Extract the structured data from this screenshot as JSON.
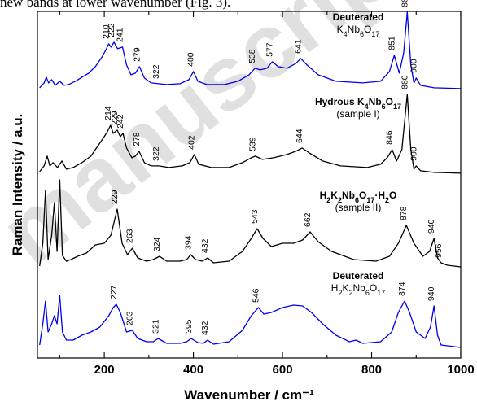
{
  "caption_fragment": "new bands at lower wavenumber (Fig. 3).",
  "watermark_text": "manuscript",
  "chart_data": {
    "type": "line",
    "xlabel": "Wavenumber / cm⁻¹",
    "ylabel": "Raman Intensity / a.u.",
    "xlim": [
      50,
      1000
    ],
    "xticks": [
      "200",
      "400",
      "600",
      "800",
      "1000"
    ],
    "grid": false,
    "series": [
      {
        "name": "Deuterated K4Nb6O17",
        "label_lines": [
          "Deuterated",
          "K4Nb6O17"
        ],
        "color": "#0000ee",
        "baseline_offset": 3.15,
        "peaks": [
          "210",
          "222",
          "241",
          "279",
          "322",
          "400",
          "538",
          "577",
          "641",
          "851",
          "880",
          "900"
        ],
        "points": [
          [
            55,
            0.02
          ],
          [
            65,
            0.08
          ],
          [
            70,
            0.15
          ],
          [
            75,
            0.08
          ],
          [
            82,
            0.12
          ],
          [
            90,
            0.05
          ],
          [
            100,
            0.1
          ],
          [
            110,
            0.05
          ],
          [
            120,
            0.06
          ],
          [
            135,
            0.1
          ],
          [
            150,
            0.15
          ],
          [
            165,
            0.2
          ],
          [
            180,
            0.28
          ],
          [
            195,
            0.4
          ],
          [
            205,
            0.5
          ],
          [
            210,
            0.56
          ],
          [
            215,
            0.52
          ],
          [
            222,
            0.58
          ],
          [
            230,
            0.5
          ],
          [
            241,
            0.52
          ],
          [
            250,
            0.3
          ],
          [
            260,
            0.18
          ],
          [
            270,
            0.2
          ],
          [
            279,
            0.28
          ],
          [
            290,
            0.14
          ],
          [
            305,
            0.08
          ],
          [
            322,
            0.07
          ],
          [
            340,
            0.06
          ],
          [
            370,
            0.07
          ],
          [
            390,
            0.12
          ],
          [
            400,
            0.22
          ],
          [
            410,
            0.1
          ],
          [
            430,
            0.06
          ],
          [
            470,
            0.06
          ],
          [
            500,
            0.1
          ],
          [
            525,
            0.18
          ],
          [
            538,
            0.26
          ],
          [
            550,
            0.24
          ],
          [
            565,
            0.26
          ],
          [
            577,
            0.34
          ],
          [
            590,
            0.28
          ],
          [
            610,
            0.26
          ],
          [
            630,
            0.32
          ],
          [
            641,
            0.38
          ],
          [
            655,
            0.3
          ],
          [
            680,
            0.18
          ],
          [
            720,
            0.1
          ],
          [
            780,
            0.08
          ],
          [
            820,
            0.1
          ],
          [
            840,
            0.22
          ],
          [
            851,
            0.42
          ],
          [
            862,
            0.2
          ],
          [
            872,
            0.45
          ],
          [
            880,
            0.95
          ],
          [
            888,
            0.3
          ],
          [
            895,
            0.08
          ],
          [
            900,
            0.14
          ],
          [
            910,
            0.05
          ],
          [
            940,
            0.02
          ],
          [
            1000,
            0.01
          ]
        ]
      },
      {
        "name": "Hydrous K4Nb6O17 (sample I)",
        "label_lines": [
          "Hydrous K4Nb6O17",
          "(sample I)"
        ],
        "color": "#000000",
        "baseline_offset": 2.12,
        "peaks": [
          "214",
          "229",
          "242",
          "278",
          "322",
          "402",
          "539",
          "644",
          "846",
          "880",
          "900"
        ],
        "points": [
          [
            55,
            0.03
          ],
          [
            65,
            0.1
          ],
          [
            72,
            0.22
          ],
          [
            78,
            0.1
          ],
          [
            85,
            0.14
          ],
          [
            95,
            0.08
          ],
          [
            105,
            0.16
          ],
          [
            115,
            0.06
          ],
          [
            130,
            0.08
          ],
          [
            150,
            0.14
          ],
          [
            170,
            0.22
          ],
          [
            185,
            0.34
          ],
          [
            200,
            0.46
          ],
          [
            207,
            0.52
          ],
          [
            214,
            0.6
          ],
          [
            220,
            0.5
          ],
          [
            229,
            0.54
          ],
          [
            236,
            0.46
          ],
          [
            242,
            0.5
          ],
          [
            250,
            0.32
          ],
          [
            262,
            0.2
          ],
          [
            270,
            0.22
          ],
          [
            278,
            0.28
          ],
          [
            290,
            0.14
          ],
          [
            305,
            0.1
          ],
          [
            322,
            0.1
          ],
          [
            345,
            0.08
          ],
          [
            375,
            0.1
          ],
          [
            392,
            0.14
          ],
          [
            402,
            0.24
          ],
          [
            412,
            0.12
          ],
          [
            440,
            0.08
          ],
          [
            480,
            0.08
          ],
          [
            510,
            0.14
          ],
          [
            530,
            0.2
          ],
          [
            539,
            0.22
          ],
          [
            555,
            0.18
          ],
          [
            580,
            0.2
          ],
          [
            610,
            0.24
          ],
          [
            630,
            0.28
          ],
          [
            644,
            0.32
          ],
          [
            660,
            0.26
          ],
          [
            690,
            0.16
          ],
          [
            730,
            0.1
          ],
          [
            790,
            0.08
          ],
          [
            820,
            0.12
          ],
          [
            835,
            0.2
          ],
          [
            846,
            0.3
          ],
          [
            856,
            0.16
          ],
          [
            868,
            0.3
          ],
          [
            880,
            0.98
          ],
          [
            888,
            0.3
          ],
          [
            895,
            0.06
          ],
          [
            900,
            0.1
          ],
          [
            910,
            0.04
          ],
          [
            940,
            0.02
          ],
          [
            1000,
            0.01
          ]
        ]
      },
      {
        "name": "H2K2Nb6O17·H2O (sample II)",
        "label_lines": [
          "H2K2Nb6O17·H2O",
          "(sample II)"
        ],
        "color": "#000000",
        "baseline_offset": 0.98,
        "peaks": [
          "229",
          "263",
          "324",
          "394",
          "432",
          "543",
          "662",
          "878",
          "940",
          "956"
        ],
        "points": [
          [
            55,
            0.02
          ],
          [
            62,
            0.3
          ],
          [
            68,
            0.95
          ],
          [
            74,
            0.1
          ],
          [
            82,
            0.4
          ],
          [
            88,
            0.8
          ],
          [
            94,
            0.2
          ],
          [
            100,
            1.08
          ],
          [
            106,
            0.15
          ],
          [
            115,
            0.08
          ],
          [
            125,
            0.1
          ],
          [
            140,
            0.14
          ],
          [
            160,
            0.18
          ],
          [
            180,
            0.28
          ],
          [
            200,
            0.3
          ],
          [
            215,
            0.4
          ],
          [
            229,
            0.72
          ],
          [
            240,
            0.3
          ],
          [
            252,
            0.16
          ],
          [
            263,
            0.24
          ],
          [
            275,
            0.12
          ],
          [
            295,
            0.08
          ],
          [
            310,
            0.1
          ],
          [
            324,
            0.14
          ],
          [
            340,
            0.08
          ],
          [
            370,
            0.08
          ],
          [
            385,
            0.1
          ],
          [
            394,
            0.16
          ],
          [
            405,
            0.1
          ],
          [
            420,
            0.08
          ],
          [
            432,
            0.12
          ],
          [
            445,
            0.06
          ],
          [
            480,
            0.08
          ],
          [
            510,
            0.2
          ],
          [
            530,
            0.36
          ],
          [
            543,
            0.48
          ],
          [
            556,
            0.36
          ],
          [
            575,
            0.26
          ],
          [
            600,
            0.3
          ],
          [
            625,
            0.3
          ],
          [
            645,
            0.34
          ],
          [
            662,
            0.44
          ],
          [
            680,
            0.32
          ],
          [
            710,
            0.2
          ],
          [
            760,
            0.1
          ],
          [
            810,
            0.08
          ],
          [
            840,
            0.14
          ],
          [
            860,
            0.3
          ],
          [
            878,
            0.52
          ],
          [
            895,
            0.3
          ],
          [
            915,
            0.14
          ],
          [
            930,
            0.2
          ],
          [
            940,
            0.36
          ],
          [
            948,
            0.12
          ],
          [
            956,
            0.06
          ],
          [
            970,
            0.03
          ],
          [
            1000,
            0.01
          ]
        ]
      },
      {
        "name": "Deuterated H2K2Nb6O17",
        "label_lines": [
          "Deuterated",
          "H2K2Nb6O17"
        ],
        "color": "#0000ee",
        "baseline_offset": 0.0,
        "peaks": [
          "227",
          "263",
          "321",
          "395",
          "432",
          "546",
          "874",
          "940"
        ],
        "points": [
          [
            55,
            0.04
          ],
          [
            62,
            0.3
          ],
          [
            68,
            0.58
          ],
          [
            74,
            0.2
          ],
          [
            82,
            0.3
          ],
          [
            88,
            0.4
          ],
          [
            94,
            0.3
          ],
          [
            100,
            0.65
          ],
          [
            106,
            0.2
          ],
          [
            115,
            0.1
          ],
          [
            130,
            0.1
          ],
          [
            150,
            0.16
          ],
          [
            170,
            0.2
          ],
          [
            190,
            0.26
          ],
          [
            210,
            0.4
          ],
          [
            220,
            0.5
          ],
          [
            227,
            0.54
          ],
          [
            236,
            0.44
          ],
          [
            250,
            0.2
          ],
          [
            263,
            0.22
          ],
          [
            275,
            0.12
          ],
          [
            295,
            0.08
          ],
          [
            310,
            0.08
          ],
          [
            321,
            0.12
          ],
          [
            340,
            0.06
          ],
          [
            370,
            0.06
          ],
          [
            385,
            0.08
          ],
          [
            395,
            0.12
          ],
          [
            410,
            0.07
          ],
          [
            422,
            0.06
          ],
          [
            432,
            0.1
          ],
          [
            445,
            0.05
          ],
          [
            480,
            0.08
          ],
          [
            510,
            0.22
          ],
          [
            530,
            0.4
          ],
          [
            546,
            0.5
          ],
          [
            558,
            0.42
          ],
          [
            575,
            0.44
          ],
          [
            600,
            0.5
          ],
          [
            625,
            0.53
          ],
          [
            645,
            0.52
          ],
          [
            665,
            0.44
          ],
          [
            690,
            0.3
          ],
          [
            720,
            0.16
          ],
          [
            750,
            0.08
          ],
          [
            765,
            0.1
          ],
          [
            780,
            0.06
          ],
          [
            820,
            0.08
          ],
          [
            845,
            0.2
          ],
          [
            860,
            0.44
          ],
          [
            874,
            0.58
          ],
          [
            885,
            0.44
          ],
          [
            900,
            0.2
          ],
          [
            920,
            0.12
          ],
          [
            932,
            0.26
          ],
          [
            940,
            0.52
          ],
          [
            948,
            0.16
          ],
          [
            956,
            0.04
          ],
          [
            1000,
            0.01
          ]
        ]
      }
    ]
  }
}
